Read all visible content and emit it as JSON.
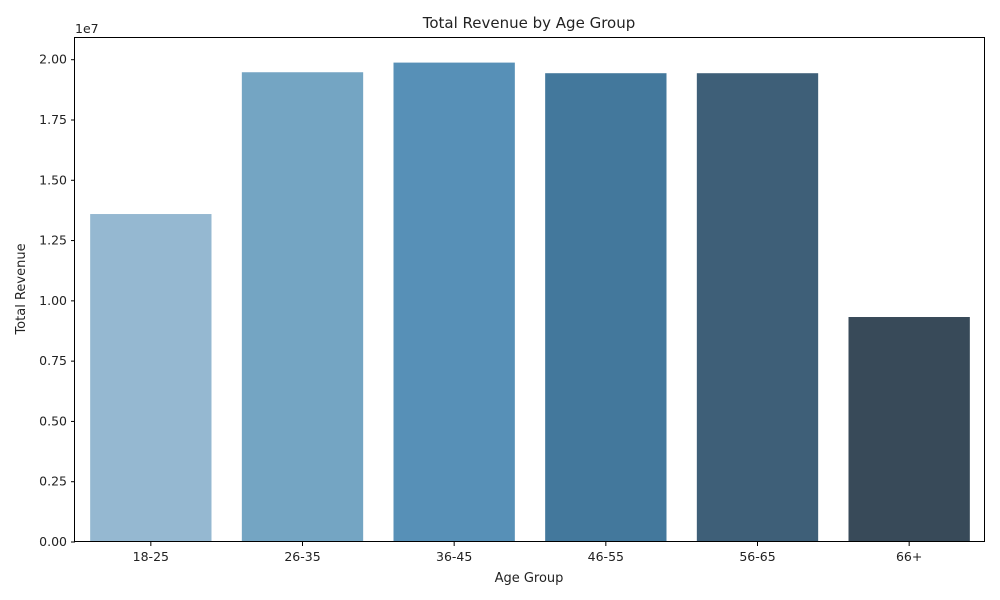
{
  "chart_data": {
    "type": "bar",
    "title": "Total Revenue by Age Group",
    "xlabel": "Age Group",
    "ylabel": "Total Revenue",
    "scale_label": "1e7",
    "categories": [
      "18-25",
      "26-35",
      "36-45",
      "46-55",
      "56-65",
      "66+"
    ],
    "values": [
      13600000,
      19480000,
      19880000,
      19440000,
      19440000,
      9330000
    ],
    "colors": [
      "#95b8d1",
      "#74a5c3",
      "#5790b7",
      "#43789c",
      "#3e5f78",
      "#384a59"
    ],
    "ylim": [
      0,
      20900000
    ],
    "yticks": [
      0,
      2500000,
      5000000,
      7500000,
      10000000,
      12500000,
      15000000,
      17500000,
      20000000
    ],
    "ytick_labels": [
      "0.00",
      "0.25",
      "0.50",
      "0.75",
      "1.00",
      "1.25",
      "1.50",
      "1.75",
      "2.00"
    ],
    "grid": false,
    "legend": false
  }
}
